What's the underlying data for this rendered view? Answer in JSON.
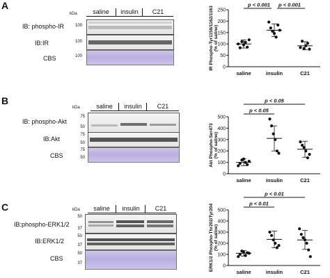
{
  "groups": [
    "saline",
    "insulin",
    "C21"
  ],
  "kda_label": "kDa",
  "panels": [
    {
      "letter": "A",
      "blots": [
        {
          "label": "IB: phospho-IR",
          "kind": "wb",
          "mw": [
            "100"
          ]
        },
        {
          "label": "IB:IR",
          "kind": "wb",
          "mw": [
            "100"
          ]
        },
        {
          "label": "CBS",
          "kind": "cbs",
          "mw": [
            "100"
          ]
        }
      ],
      "chart": {
        "ylabel": "IR Phospho-Tyr1158/1162/1163\n(% of saline)",
        "yticks": [
          "250",
          "200",
          "150",
          "100",
          "50",
          "0"
        ]
      }
    },
    {
      "letter": "B",
      "blots": [
        {
          "label": "IB: phospho-Akt",
          "kind": "wb",
          "mw": [
            "75",
            "50"
          ]
        },
        {
          "label": "IB:Akt",
          "kind": "wb",
          "mw": [
            "75",
            "50"
          ]
        },
        {
          "label": "CBS",
          "kind": "cbs",
          "mw": [
            "75",
            "50"
          ]
        }
      ],
      "chart": {
        "ylabel": "Akt Phospho-Ser473\n(% of saline)",
        "yticks": [
          "500",
          "400",
          "300",
          "200",
          "100",
          "0"
        ]
      }
    },
    {
      "letter": "C",
      "blots": [
        {
          "label": "IB:phospho-ERK1/2",
          "kind": "wb",
          "mw": [
            "50",
            "37"
          ]
        },
        {
          "label": "IB:ERK1/2",
          "kind": "wb",
          "mw": [
            "50",
            "37"
          ]
        },
        {
          "label": "CBS",
          "kind": "cbs",
          "mw": [
            "50",
            "37"
          ]
        }
      ],
      "chart": {
        "ylabel": "ERK1/2 Phospho-Thr202/Tyr204\n(% of saline)",
        "yticks": [
          "500",
          "400",
          "300",
          "200",
          "100",
          "0"
        ]
      }
    }
  ],
  "chart_data": [
    {
      "type": "scatter",
      "ylabel": "IR Phospho-Tyr1158/1162/1163 (% of saline)",
      "categories": [
        "saline",
        "insulin",
        "C21"
      ],
      "ylim": [
        0,
        250
      ],
      "mean": [
        100,
        160,
        92
      ],
      "sd": [
        18,
        28,
        18
      ],
      "points": [
        [
          100,
          83,
          110,
          96,
          107,
          86,
          118
        ],
        [
          196,
          170,
          156,
          146,
          130,
          183,
          160
        ],
        [
          84,
          112,
          80,
          92,
          103,
          77
        ]
      ],
      "annotations": [
        {
          "from": "saline",
          "to": "insulin",
          "text": "p < 0.001"
        },
        {
          "from": "insulin",
          "to": "C21",
          "text": "p < 0.001"
        }
      ]
    },
    {
      "type": "scatter",
      "ylabel": "Akt Phospho-Ser473 (% of saline)",
      "categories": [
        "saline",
        "insulin",
        "C21"
      ],
      "ylim": [
        0,
        500
      ],
      "mean": [
        100,
        310,
        215
      ],
      "sd": [
        30,
        110,
        70
      ],
      "points": [
        [
          70,
          90,
          120,
          130,
          100,
          80,
          110
        ],
        [
          480,
          420,
          350,
          300,
          200,
          180
        ],
        [
          280,
          250,
          230,
          200,
          140,
          170
        ]
      ],
      "annotations": [
        {
          "from": "saline",
          "to": "insulin",
          "text": "p < 0.05"
        },
        {
          "from": "saline",
          "to": "C21",
          "text": "p < 0.05"
        }
      ]
    },
    {
      "type": "scatter",
      "ylabel": "ERK1/2 Phospho-Thr202/Tyr204 (% of saline)",
      "categories": [
        "saline",
        "insulin",
        "C21"
      ],
      "ylim": [
        0,
        500
      ],
      "mean": [
        110,
        235,
        230
      ],
      "sd": [
        25,
        75,
        85
      ],
      "points": [
        [
          80,
          100,
          130,
          120,
          90,
          115,
          110
        ],
        [
          300,
          270,
          230,
          200,
          160,
          180
        ],
        [
          330,
          280,
          250,
          230,
          200,
          140,
          80
        ]
      ],
      "annotations": [
        {
          "from": "saline",
          "to": "insulin",
          "text": "p < 0.01"
        },
        {
          "from": "saline",
          "to": "C21",
          "text": "p < 0.01"
        }
      ]
    }
  ]
}
